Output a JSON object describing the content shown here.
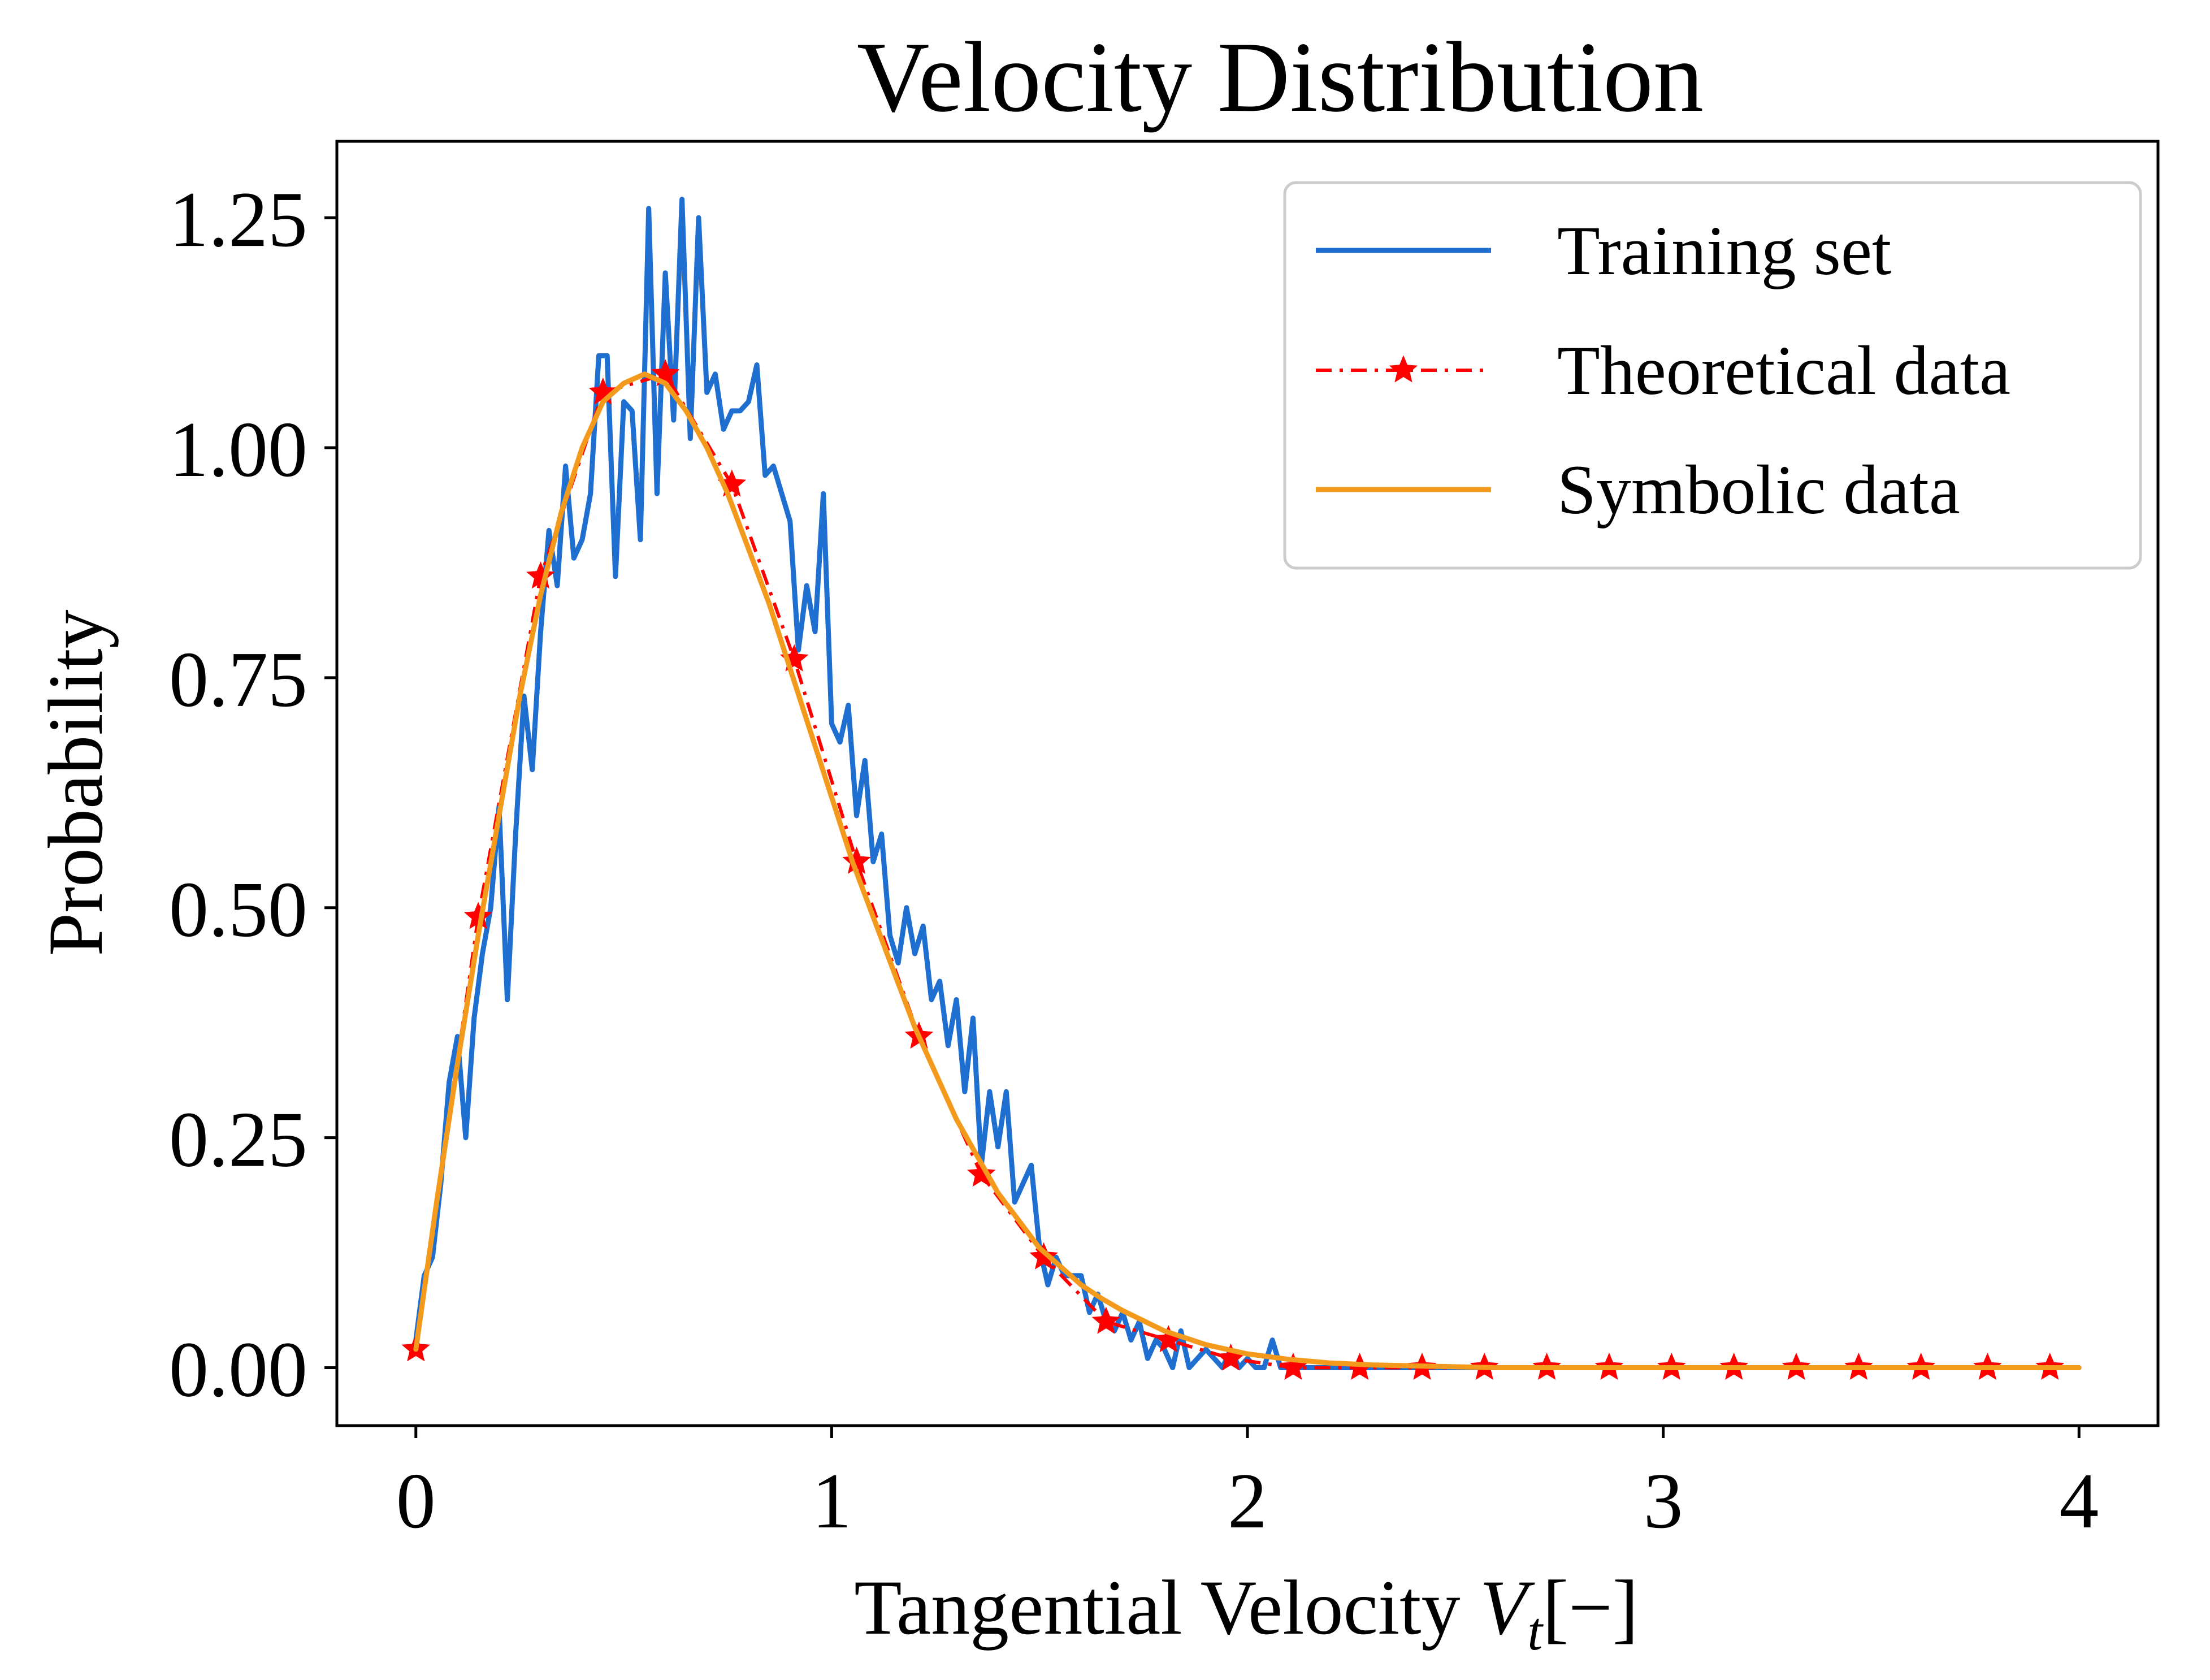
{
  "chart_data": {
    "type": "line",
    "title": "Velocity Distribution",
    "xlabel": {
      "prefix": "Tangential Velocity ",
      "var": "V",
      "sub": "t",
      "suffix": "[−]"
    },
    "ylabel": "Probability",
    "xlim": [
      -0.19,
      4.19
    ],
    "ylim": [
      -0.063,
      1.333
    ],
    "x_ticks": [
      0,
      1,
      2,
      3,
      4
    ],
    "x_tick_labels": [
      "0",
      "1",
      "2",
      "3",
      "4"
    ],
    "y_ticks": [
      0.0,
      0.25,
      0.5,
      0.75,
      1.0,
      1.25
    ],
    "y_tick_labels": [
      "0.00",
      "0.25",
      "0.50",
      "0.75",
      "1.00",
      "1.25"
    ],
    "grid": false,
    "legend_position": "top-right",
    "series": [
      {
        "name": "Training set",
        "color": "#1f6fd0",
        "style": "solid",
        "x": [
          0.0,
          0.02,
          0.04,
          0.06,
          0.08,
          0.1,
          0.12,
          0.14,
          0.16,
          0.18,
          0.2,
          0.22,
          0.24,
          0.26,
          0.28,
          0.3,
          0.32,
          0.34,
          0.36,
          0.38,
          0.4,
          0.42,
          0.44,
          0.46,
          0.48,
          0.5,
          0.52,
          0.54,
          0.56,
          0.58,
          0.6,
          0.62,
          0.64,
          0.66,
          0.68,
          0.7,
          0.72,
          0.74,
          0.76,
          0.78,
          0.8,
          0.82,
          0.84,
          0.86,
          0.88,
          0.9,
          0.92,
          0.94,
          0.96,
          0.98,
          1.0,
          1.02,
          1.04,
          1.06,
          1.08,
          1.1,
          1.12,
          1.14,
          1.16,
          1.18,
          1.2,
          1.22,
          1.24,
          1.26,
          1.28,
          1.3,
          1.32,
          1.34,
          1.36,
          1.38,
          1.4,
          1.42,
          1.44,
          1.46,
          1.48,
          1.5,
          1.52,
          1.54,
          1.56,
          1.58,
          1.6,
          1.62,
          1.64,
          1.66,
          1.68,
          1.7,
          1.72,
          1.74,
          1.76,
          1.78,
          1.8,
          1.82,
          1.84,
          1.86,
          1.88,
          1.9,
          1.92,
          1.94,
          1.96,
          1.98,
          2.0,
          2.02,
          2.04,
          2.06,
          2.08,
          2.1,
          2.2,
          2.4,
          2.6,
          2.8,
          3.0,
          3.2,
          3.4,
          3.6,
          3.8,
          4.0
        ],
        "y": [
          0.03,
          0.1,
          0.12,
          0.2,
          0.31,
          0.36,
          0.25,
          0.38,
          0.45,
          0.5,
          0.61,
          0.4,
          0.58,
          0.73,
          0.65,
          0.8,
          0.91,
          0.85,
          0.98,
          0.88,
          0.9,
          0.95,
          1.1,
          1.1,
          0.86,
          1.05,
          1.04,
          0.9,
          1.26,
          0.95,
          1.19,
          1.03,
          1.27,
          1.01,
          1.25,
          1.06,
          1.08,
          1.02,
          1.04,
          1.04,
          1.05,
          1.09,
          0.97,
          0.98,
          0.95,
          0.92,
          0.78,
          0.85,
          0.8,
          0.95,
          0.7,
          0.68,
          0.72,
          0.6,
          0.66,
          0.55,
          0.58,
          0.47,
          0.44,
          0.5,
          0.45,
          0.48,
          0.4,
          0.42,
          0.35,
          0.4,
          0.3,
          0.38,
          0.22,
          0.3,
          0.24,
          0.3,
          0.18,
          0.2,
          0.22,
          0.13,
          0.09,
          0.12,
          0.1,
          0.1,
          0.1,
          0.06,
          0.08,
          0.05,
          0.04,
          0.06,
          0.03,
          0.05,
          0.01,
          0.03,
          0.02,
          0.0,
          0.04,
          0.0,
          0.01,
          0.02,
          0.01,
          0.0,
          0.02,
          0.0,
          0.01,
          0.0,
          0.0,
          0.03,
          0.0,
          0.0,
          0.0,
          0.0,
          0.0,
          0.0,
          0.0,
          0.0,
          0.0,
          0.0,
          0.0,
          0.0
        ]
      },
      {
        "name": "Theoretical data",
        "color": "#ff0000",
        "style": "dashdot",
        "marker": "star",
        "x": [
          0.0,
          0.15,
          0.3,
          0.45,
          0.6,
          0.76,
          0.91,
          1.06,
          1.21,
          1.36,
          1.51,
          1.66,
          1.81,
          1.96,
          2.11,
          2.27,
          2.42,
          2.57,
          2.72,
          2.87,
          3.02,
          3.17,
          3.32,
          3.47,
          3.62,
          3.78,
          3.93
        ],
        "y": [
          0.02,
          0.49,
          0.86,
          1.06,
          1.08,
          0.96,
          0.77,
          0.55,
          0.36,
          0.21,
          0.12,
          0.05,
          0.03,
          0.01,
          0.0,
          0.0,
          0.0,
          0.0,
          0.0,
          0.0,
          0.0,
          0.0,
          0.0,
          0.0,
          0.0,
          0.0,
          0.0
        ]
      },
      {
        "name": "Symbolic data",
        "color": "#f39a1d",
        "style": "solid",
        "x": [
          0.0,
          0.05,
          0.1,
          0.15,
          0.2,
          0.25,
          0.3,
          0.35,
          0.4,
          0.45,
          0.5,
          0.55,
          0.6,
          0.65,
          0.7,
          0.75,
          0.8,
          0.85,
          0.9,
          0.95,
          1.0,
          1.05,
          1.1,
          1.15,
          1.2,
          1.25,
          1.3,
          1.35,
          1.4,
          1.45,
          1.5,
          1.55,
          1.6,
          1.65,
          1.7,
          1.8,
          1.9,
          2.0,
          2.1,
          2.2,
          2.3,
          2.4,
          2.6,
          2.8,
          3.0,
          3.5,
          4.0
        ],
        "y": [
          0.02,
          0.18,
          0.33,
          0.47,
          0.6,
          0.73,
          0.84,
          0.93,
          1.0,
          1.05,
          1.07,
          1.08,
          1.07,
          1.04,
          1.0,
          0.95,
          0.89,
          0.83,
          0.76,
          0.69,
          0.62,
          0.55,
          0.49,
          0.43,
          0.37,
          0.32,
          0.27,
          0.23,
          0.19,
          0.16,
          0.13,
          0.11,
          0.09,
          0.075,
          0.062,
          0.04,
          0.025,
          0.015,
          0.009,
          0.005,
          0.003,
          0.002,
          0.0,
          0.0,
          0.0,
          0.0,
          0.0
        ]
      }
    ]
  }
}
